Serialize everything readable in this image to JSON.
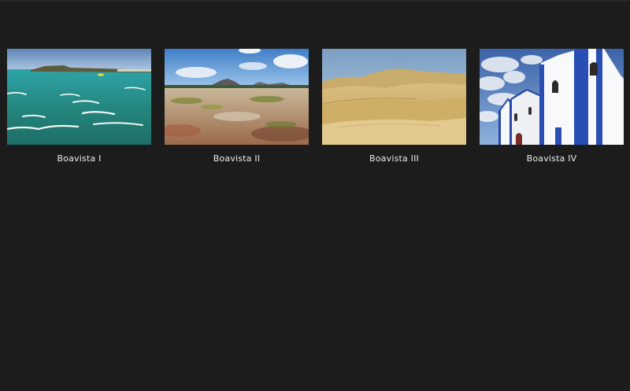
{
  "gallery": {
    "items": [
      {
        "caption": "Boavista I",
        "image": "turquoise-sea-waves-with-island"
      },
      {
        "caption": "Boavista II",
        "image": "arid-desert-plain-with-hills"
      },
      {
        "caption": "Boavista III",
        "image": "golden-sand-dunes"
      },
      {
        "caption": "Boavista IV",
        "image": "white-and-blue-church"
      }
    ]
  },
  "colors": {
    "background": "#1c1c1c",
    "caption_text": "#ececec"
  }
}
